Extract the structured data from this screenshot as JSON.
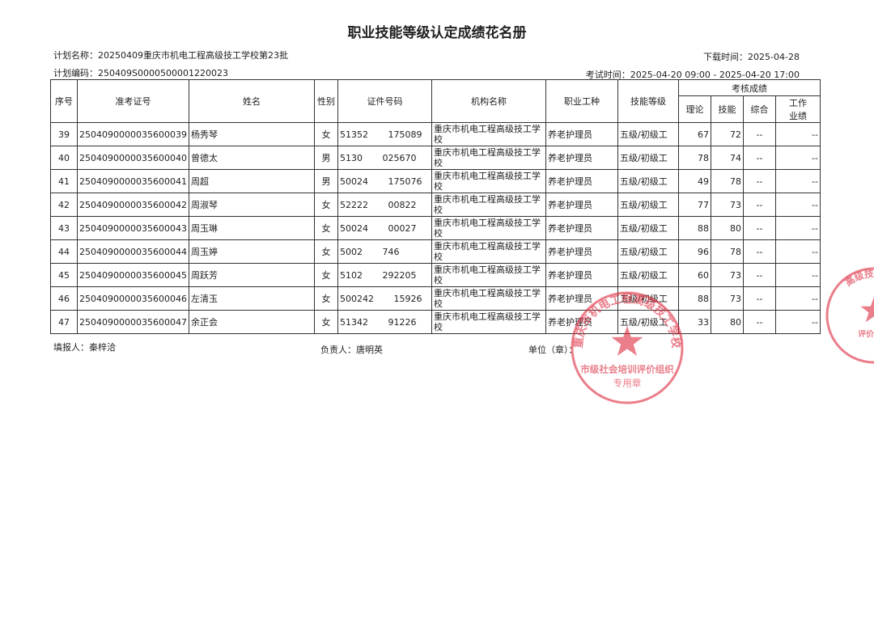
{
  "header": {
    "title": "职业技能等级认定成绩花名册",
    "plan_name": "计划名称：20250409重庆市机电工程高级技工学校第23批",
    "download_time": "下载时间：2025-04-28",
    "plan_code": "计划编码：250409S0000500001220023",
    "exam_time": "考试时间：2025-04-20 09:00 - 2025-04-20 17:00"
  },
  "table": {
    "columns": [
      "序号",
      "准考证号",
      "姓名",
      "性别",
      "证件号码",
      "机构名称",
      "职业工种",
      "技能等级"
    ],
    "score_group": "考核成绩",
    "score_columns": [
      "理论",
      "技能",
      "综合",
      "工作业绩"
    ],
    "rows": [
      [
        39,
        "2504090000035600039",
        "杨秀琴",
        "女",
        "51352       175089",
        "重庆市机电工程高级技工学校",
        "养老护理员",
        "五级/初级工",
        67,
        72,
        "--",
        "--"
      ],
      [
        40,
        "2504090000035600040",
        "曾德太",
        "男",
        "5130       025670",
        "重庆市机电工程高级技工学校",
        "养老护理员",
        "五级/初级工",
        78,
        74,
        "--",
        "--"
      ],
      [
        41,
        "2504090000035600041",
        "周超",
        "男",
        "50024       175076",
        "重庆市机电工程高级技工学校",
        "养老护理员",
        "五级/初级工",
        49,
        78,
        "--",
        "--"
      ],
      [
        42,
        "2504090000035600042",
        "周淑琴",
        "女",
        "52222       00822",
        "重庆市机电工程高级技工学校",
        "养老护理员",
        "五级/初级工",
        77,
        73,
        "--",
        "--"
      ],
      [
        43,
        "2504090000035600043",
        "周玉琳",
        "女",
        "50024       00027",
        "重庆市机电工程高级技工学校",
        "养老护理员",
        "五级/初级工",
        88,
        80,
        "--",
        "--"
      ],
      [
        44,
        "2504090000035600044",
        "周玉婷",
        "女",
        "5002       746",
        "重庆市机电工程高级技工学校",
        "养老护理员",
        "五级/初级工",
        96,
        78,
        "--",
        "--"
      ],
      [
        45,
        "2504090000035600045",
        "周跃芳",
        "女",
        "5102       292205",
        "重庆市机电工程高级技工学校",
        "养老护理员",
        "五级/初级工",
        60,
        73,
        "--",
        "--"
      ],
      [
        46,
        "2504090000035600046",
        "左清玉",
        "女",
        "500242       15926",
        "重庆市机电工程高级技工学校",
        "养老护理员",
        "五级/初级工",
        88,
        73,
        "--",
        "--"
      ],
      [
        47,
        "2504090000035600047",
        "余正会",
        "女",
        "51342       91226",
        "重庆市机电工程高级技工学校",
        "养老护理员",
        "五级/初级工",
        33,
        80,
        "--",
        "--"
      ]
    ]
  },
  "footer": {
    "filler": "填报人：秦梓洽",
    "leader": "负责人：唐明英",
    "unit": "单位（章）："
  },
  "seals": [
    {
      "ring": "重庆市机电工程高级技工学校",
      "inner": "市级社会培训评价组织",
      "bottom": "专用章"
    },
    {
      "ring": "高级技工学校",
      "inner": "评价组织"
    }
  ]
}
